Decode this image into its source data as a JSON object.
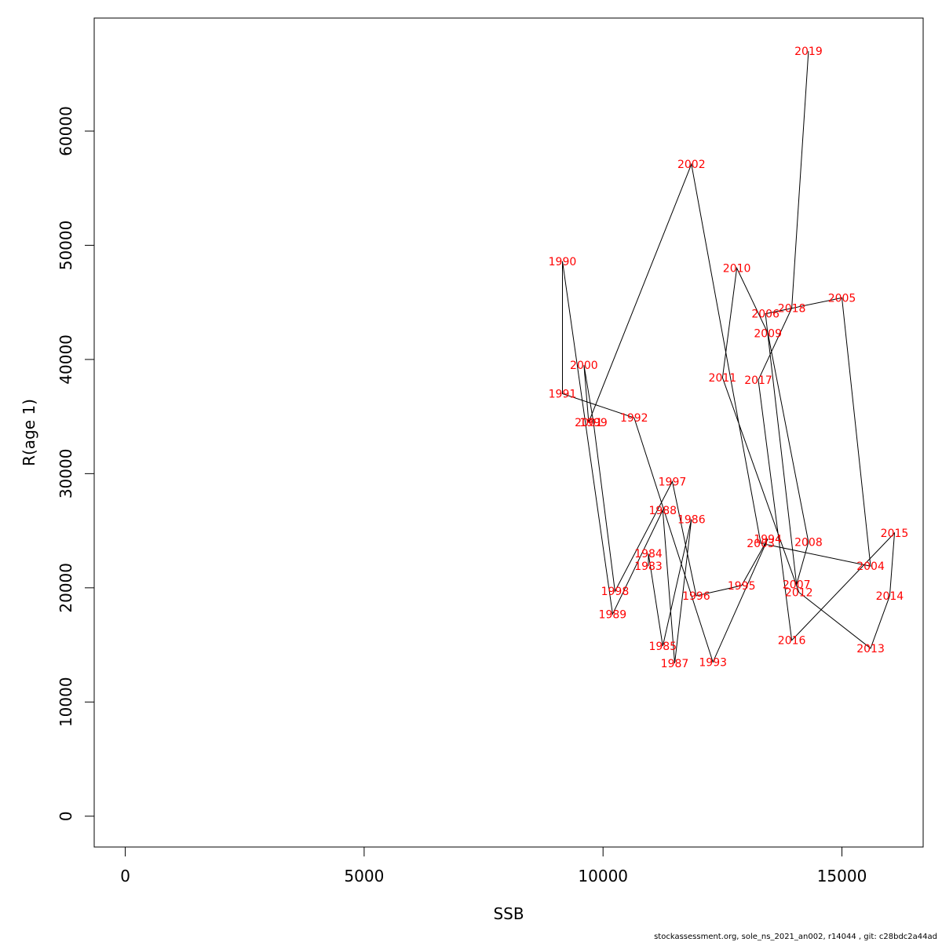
{
  "chart_data": {
    "type": "line",
    "title": "",
    "xlabel": "SSB",
    "ylabel": "R(age 1)",
    "xlim": [
      -650,
      16700
    ],
    "ylim": [
      -2700,
      69900
    ],
    "x_ticks": [
      0,
      5000,
      10000,
      15000
    ],
    "y_ticks": [
      0,
      10000,
      20000,
      30000,
      40000,
      50000,
      60000
    ],
    "grid": false,
    "legend": "none",
    "colors": {
      "labels": "#ff0000",
      "line": "#000000",
      "axes": "#000000"
    },
    "series": [
      {
        "points": [
          {
            "label": "1983",
            "x": 10950,
            "y": 21900
          },
          {
            "label": "1984",
            "x": 10950,
            "y": 23000
          },
          {
            "label": "1985",
            "x": 11250,
            "y": 14900
          },
          {
            "label": "1986",
            "x": 11850,
            "y": 26000
          },
          {
            "label": "1987",
            "x": 11500,
            "y": 13400
          },
          {
            "label": "1988",
            "x": 11250,
            "y": 26800
          },
          {
            "label": "1989",
            "x": 10200,
            "y": 17700
          },
          {
            "label": "1990",
            "x": 9150,
            "y": 48600
          },
          {
            "label": "1991",
            "x": 9150,
            "y": 37000
          },
          {
            "label": "1992",
            "x": 10650,
            "y": 34900
          },
          {
            "label": "1993",
            "x": 12300,
            "y": 13500
          },
          {
            "label": "1994",
            "x": 13450,
            "y": 24300
          },
          {
            "label": "1995",
            "x": 12900,
            "y": 20200
          },
          {
            "label": "1996",
            "x": 11950,
            "y": 19300
          },
          {
            "label": "1997",
            "x": 11450,
            "y": 29300
          },
          {
            "label": "1998",
            "x": 10250,
            "y": 19700
          },
          {
            "label": "1999",
            "x": 9800,
            "y": 34500
          },
          {
            "label": "2000",
            "x": 9600,
            "y": 39500
          },
          {
            "label": "2001",
            "x": 9700,
            "y": 34500
          },
          {
            "label": "2002",
            "x": 11850,
            "y": 57100
          },
          {
            "label": "2003",
            "x": 13300,
            "y": 23900
          },
          {
            "label": "2004",
            "x": 15600,
            "y": 21900
          },
          {
            "label": "2005",
            "x": 15000,
            "y": 45400
          },
          {
            "label": "2006",
            "x": 13400,
            "y": 44000
          },
          {
            "label": "2007",
            "x": 14050,
            "y": 20300
          },
          {
            "label": "2008",
            "x": 14300,
            "y": 24000
          },
          {
            "label": "2009",
            "x": 13450,
            "y": 42300
          },
          {
            "label": "2010",
            "x": 12800,
            "y": 48000
          },
          {
            "label": "2011",
            "x": 12500,
            "y": 38400
          },
          {
            "label": "2012",
            "x": 14100,
            "y": 19600
          },
          {
            "label": "2013",
            "x": 15600,
            "y": 14700
          },
          {
            "label": "2014",
            "x": 16000,
            "y": 19300
          },
          {
            "label": "2015",
            "x": 16100,
            "y": 24800
          },
          {
            "label": "2016",
            "x": 13950,
            "y": 15400
          },
          {
            "label": "2017",
            "x": 13250,
            "y": 38200
          },
          {
            "label": "2018",
            "x": 13950,
            "y": 44500
          },
          {
            "label": "2019",
            "x": 14300,
            "y": 67000
          }
        ]
      }
    ]
  },
  "footer": {
    "note": "stockassessment.org, sole_ns_2021_an002, r14044 , git: c28bdc2a44ad"
  }
}
